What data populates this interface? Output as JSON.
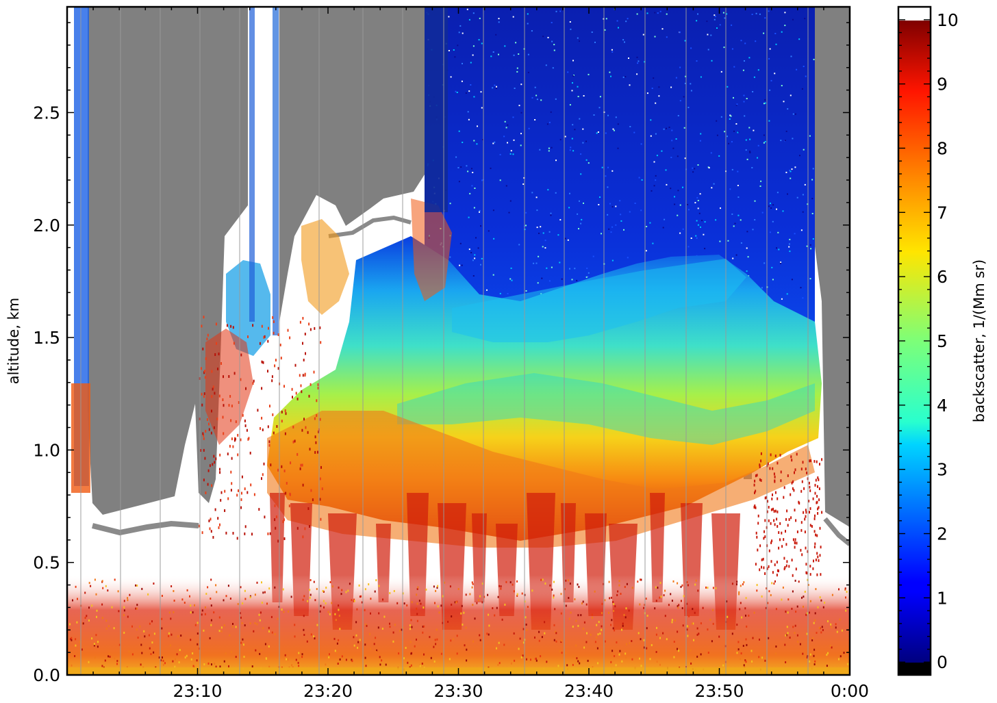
{
  "chart_data": {
    "type": "heatmap",
    "title": "",
    "xlabel": "",
    "ylabel": "altitude, km",
    "x_tick_labels": [
      "23:10",
      "23:20",
      "23:30",
      "23:40",
      "23:50",
      "0:00"
    ],
    "x_tick_minutes": [
      10,
      20,
      30,
      40,
      50,
      60
    ],
    "xlim_minutes": [
      0,
      60
    ],
    "y_ticks": [
      "0.0",
      "0.5",
      "1.0",
      "1.5",
      "2.0",
      "2.5"
    ],
    "ylim": [
      0,
      2.97
    ],
    "colorbar": {
      "label": "backscatter, 1/(Mm sr)",
      "ticks": [
        "0",
        "1",
        "2",
        "3",
        "4",
        "5",
        "6",
        "7",
        "8",
        "9",
        "10"
      ],
      "range": [
        -0.2,
        10.2
      ],
      "colormap": "jet",
      "under_color": "#000000",
      "over_color": "#ffffff"
    },
    "no_data_color": "#808080",
    "grid": false
  }
}
